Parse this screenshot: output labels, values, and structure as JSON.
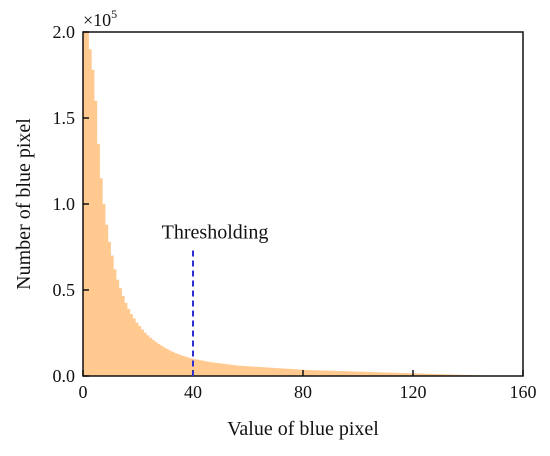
{
  "chart_data": {
    "type": "bar",
    "xlabel": "Value of blue pixel",
    "ylabel": "Number of blue pixel",
    "xlim": [
      0,
      160
    ],
    "ylim": [
      0,
      2.0
    ],
    "y_multiplier": "×10",
    "y_multiplier_exponent": "5",
    "x_ticks": [
      0,
      40,
      80,
      120,
      160
    ],
    "x_tick_labels": [
      "0",
      "40",
      "80",
      "120",
      "160"
    ],
    "y_ticks": [
      0,
      0.5,
      1.0,
      1.5,
      2.0
    ],
    "y_tick_labels": [
      "0.0",
      "0.5",
      "1.0",
      "1.5",
      "2.0"
    ],
    "bar_color": "#ffc990",
    "threshold": {
      "label": "Thresholding",
      "x": 40,
      "y_top": 0.73,
      "color": "#2f2fd0",
      "style": "dashed"
    },
    "x": [
      1,
      2,
      3,
      4,
      5,
      6,
      7,
      8,
      9,
      10,
      11,
      12,
      13,
      14,
      15,
      16,
      17,
      18,
      19,
      20,
      21,
      22,
      23,
      24,
      25,
      26,
      27,
      28,
      29,
      30,
      31,
      32,
      33,
      34,
      35,
      36,
      37,
      38,
      39,
      40,
      41,
      42,
      43,
      44,
      45,
      46,
      47,
      48,
      49,
      50,
      51,
      52,
      53,
      54,
      55,
      56,
      57,
      58,
      59,
      60,
      61,
      62,
      63,
      64,
      65,
      66,
      67,
      68,
      69,
      70,
      71,
      72,
      73,
      74,
      75,
      76,
      77,
      78,
      79,
      80,
      81,
      82,
      83,
      84,
      85,
      86,
      87,
      88,
      89,
      90,
      91,
      92,
      93,
      94,
      95,
      96,
      97,
      98,
      99,
      100,
      101,
      102,
      103,
      104,
      105,
      106,
      107,
      108,
      109,
      110,
      111,
      112,
      113,
      114,
      115,
      116,
      117,
      118,
      119,
      120,
      121,
      122,
      123,
      124,
      125,
      126,
      127,
      128,
      129,
      130,
      131,
      132,
      133,
      134,
      135,
      136,
      137,
      138,
      139,
      140,
      141,
      142,
      143,
      144,
      145,
      146,
      147,
      148,
      149,
      150,
      151,
      152,
      153,
      154,
      155,
      156,
      157,
      158,
      159,
      160
    ],
    "values": [
      2.0,
      2.0,
      1.9,
      1.78,
      1.6,
      1.35,
      1.15,
      1.0,
      0.88,
      0.78,
      0.7,
      0.62,
      0.56,
      0.51,
      0.465,
      0.425,
      0.39,
      0.36,
      0.335,
      0.31,
      0.29,
      0.27,
      0.252,
      0.236,
      0.222,
      0.209,
      0.197,
      0.186,
      0.176,
      0.166,
      0.157,
      0.149,
      0.141,
      0.134,
      0.127,
      0.121,
      0.116,
      0.111,
      0.106,
      0.102,
      0.098,
      0.095,
      0.092,
      0.089,
      0.086,
      0.083,
      0.08,
      0.078,
      0.076,
      0.074,
      0.072,
      0.07,
      0.068,
      0.066,
      0.064,
      0.062,
      0.06,
      0.059,
      0.058,
      0.057,
      0.056,
      0.055,
      0.054,
      0.053,
      0.052,
      0.051,
      0.05,
      0.049,
      0.048,
      0.047,
      0.046,
      0.045,
      0.044,
      0.043,
      0.042,
      0.041,
      0.04,
      0.039,
      0.038,
      0.037,
      0.036,
      0.035,
      0.034,
      0.034,
      0.033,
      0.033,
      0.032,
      0.032,
      0.031,
      0.031,
      0.03,
      0.03,
      0.029,
      0.029,
      0.028,
      0.028,
      0.027,
      0.027,
      0.026,
      0.026,
      0.025,
      0.025,
      0.024,
      0.024,
      0.023,
      0.023,
      0.022,
      0.022,
      0.021,
      0.021,
      0.02,
      0.02,
      0.019,
      0.019,
      0.018,
      0.018,
      0.017,
      0.017,
      0.016,
      0.016,
      0.015,
      0.015,
      0.014,
      0.014,
      0.013,
      0.013,
      0.012,
      0.012,
      0.011,
      0.011,
      0.01,
      0.01,
      0.009,
      0.009,
      0.008,
      0.008,
      0.007,
      0.007,
      0.006,
      0.006,
      0.005,
      0.005,
      0.004,
      0.004,
      0.004,
      0.003,
      0.003,
      0.003,
      0.002,
      0.002,
      0.002,
      0.002,
      0.002,
      0.001,
      0.001,
      0.001,
      0.001,
      0.001,
      0.001,
      0.001
    ]
  }
}
